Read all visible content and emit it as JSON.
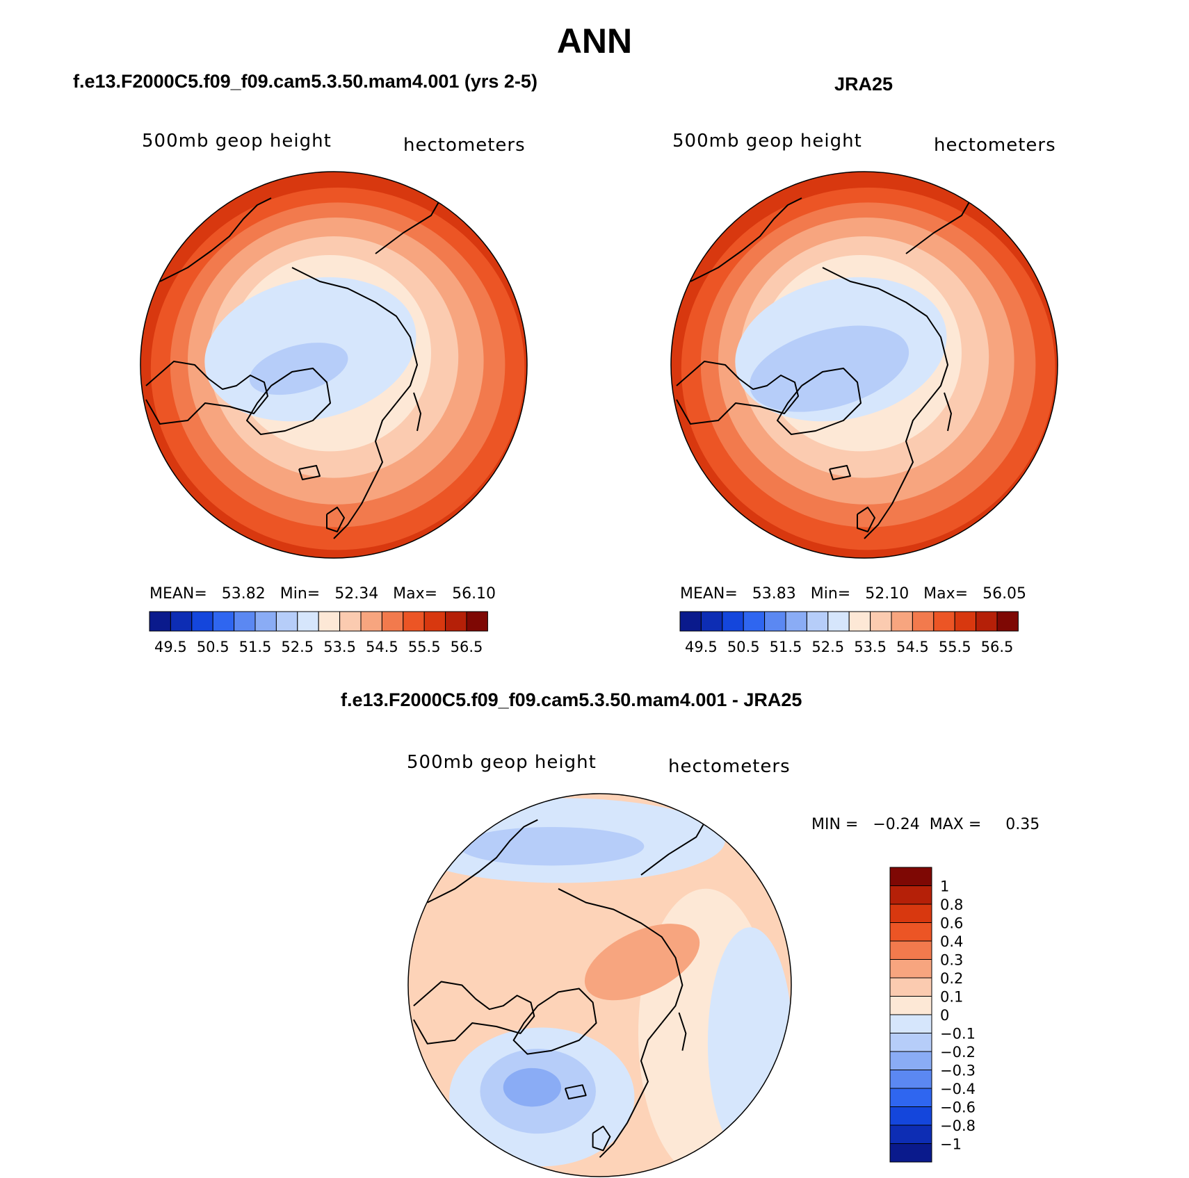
{
  "title": "ANN",
  "palette": {
    "ramp": [
      "#0a1a8c",
      "#0d2db4",
      "#1446dc",
      "#2f66f0",
      "#5b88f2",
      "#8aacf5",
      "#b6cdf9",
      "#d6e6fc",
      "#fde8d6",
      "#fbcbb0",
      "#f7a57f",
      "#f27a4d",
      "#ec5525",
      "#d8380f",
      "#b52008",
      "#7e0804"
    ],
    "coast_color": "#000000"
  },
  "panels": {
    "model": {
      "title": "f.e13.F2000C5.f09_f09.cam5.3.50.mam4.001 (yrs 2-5)",
      "variable": "500mb geop height",
      "units": "hectometers",
      "stats": "MEAN=   53.82   Min=   52.34   Max=   56.10",
      "colorbar_labels": [
        "49.5",
        "50.5",
        "51.5",
        "52.5",
        "53.5",
        "54.5",
        "55.5",
        "56.5"
      ]
    },
    "obs": {
      "title": "JRA25",
      "variable": "500mb geop height",
      "units": "hectometers",
      "stats": "MEAN=   53.83   Min=   52.10   Max=   56.05",
      "colorbar_labels": [
        "49.5",
        "50.5",
        "51.5",
        "52.5",
        "53.5",
        "54.5",
        "55.5",
        "56.5"
      ]
    },
    "diff": {
      "title": "f.e13.F2000C5.f09_f09.cam5.3.50.mam4.001 - JRA25",
      "variable": "500mb geop height",
      "units": "hectometers",
      "minmax": "MIN =   −0.24  MAX =     0.35",
      "colorbar_labels": [
        "1",
        "0.8",
        "0.6",
        "0.4",
        "0.3",
        "0.2",
        "0.1",
        "0",
        "−0.1",
        "−0.2",
        "−0.3",
        "−0.4",
        "−0.6",
        "−0.8",
        "−1"
      ]
    }
  }
}
